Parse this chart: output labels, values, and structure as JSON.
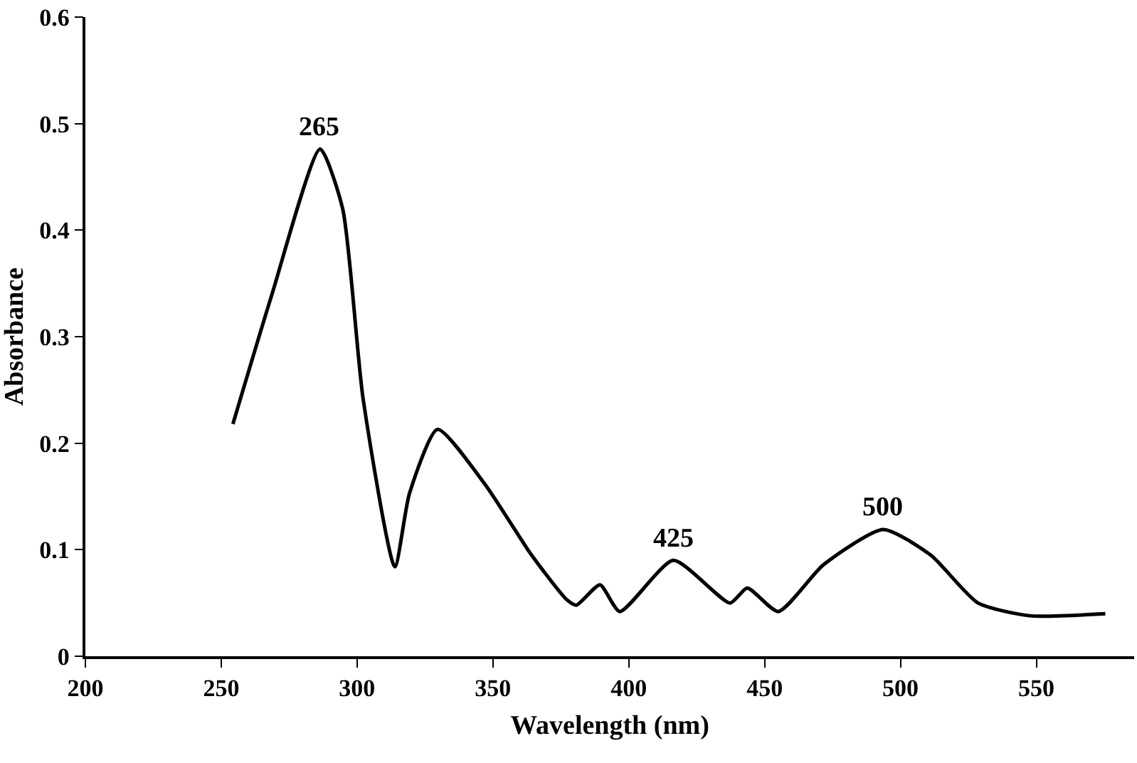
{
  "chart_data": {
    "type": "line",
    "xlabel": "Wavelength (nm)",
    "ylabel": "Absorbance",
    "x": [
      254.3,
      268.7,
      286.4,
      294.7,
      302.2,
      313.9,
      319.3,
      329.6,
      346.9,
      364.2,
      377.2,
      380.7,
      389.4,
      396.7,
      416.4,
      437.3,
      443.6,
      455,
      471.7,
      493.6,
      511.1,
      528.5,
      547.6,
      575.4
    ],
    "series": [
      {
        "color": "#000000",
        "values": [
          0.218,
          0.34,
          0.476,
          0.42,
          0.242,
          0.084,
          0.153,
          0.213,
          0.162,
          0.095,
          0.053,
          0.048,
          0.067,
          0.042,
          0.09,
          0.05,
          0.064,
          0.042,
          0.086,
          0.119,
          0.095,
          0.05,
          0.038,
          0.04
        ]
      }
    ],
    "annotations": [
      {
        "text": "265",
        "x": 286.4,
        "y": 0.476
      },
      {
        "text": "425",
        "x": 416.4,
        "y": 0.09
      },
      {
        "text": "500",
        "x": 493.6,
        "y": 0.119
      }
    ],
    "xlim": [
      200,
      586
    ],
    "ylim": [
      0,
      0.6
    ],
    "xticks": [
      200,
      250,
      300,
      350,
      400,
      450,
      500,
      550
    ],
    "yticks": [
      0,
      0.1,
      0.2,
      0.3,
      0.4,
      0.5,
      0.6
    ],
    "marker": "none",
    "line_style": "solid"
  }
}
